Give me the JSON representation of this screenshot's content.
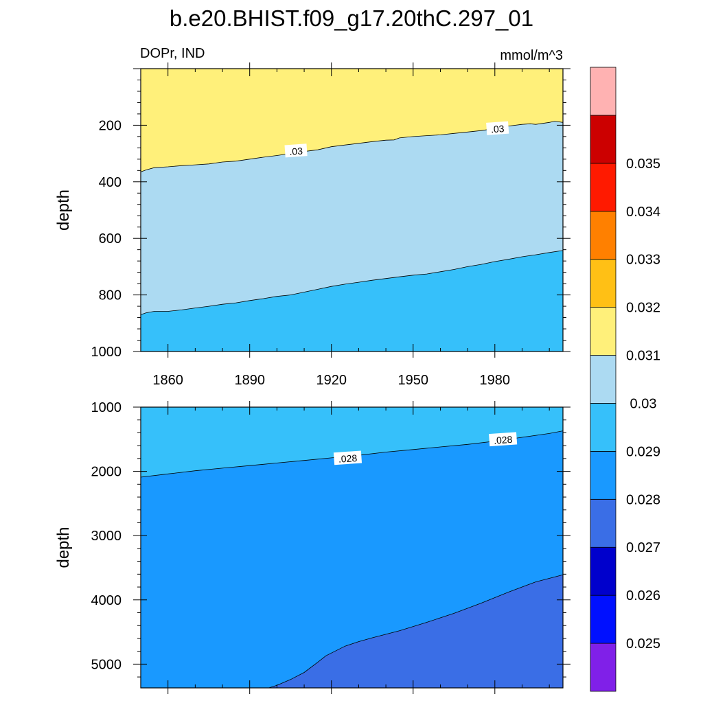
{
  "title": "b.e20.BHIST.f09_g17.20thC.297_01",
  "chart_data": {
    "type": "contour",
    "left_label": "DOPr, IND",
    "right_label": "mmol/m^3",
    "x_axis": {
      "range": [
        1850,
        2005
      ],
      "ticks": [
        1860,
        1890,
        1920,
        1950,
        1980
      ],
      "labels": [
        "1860",
        "1890",
        "1920",
        "1950",
        "1980"
      ]
    },
    "colorbar": {
      "colors": [
        "#8020e8",
        "#0010ff",
        "#0000cc",
        "#3a6ee6",
        "#1999ff",
        "#36c0fa",
        "#acdaf2",
        "#fff07a",
        "#ffc015",
        "#ff8000",
        "#ff1a00",
        "#cc0000",
        "#ffb2b2"
      ],
      "levels": [
        0.025,
        0.026,
        0.027,
        0.028,
        0.029,
        0.03,
        0.031,
        0.032,
        0.033,
        0.034,
        0.035
      ],
      "labels": [
        "0.025",
        "0.026",
        "0.027",
        "0.028",
        "0.029",
        "0.03",
        "0.031",
        "0.032",
        "0.033",
        "0.034",
        "0.035"
      ]
    },
    "panels": [
      {
        "name": "upper",
        "y_label": "depth",
        "y_range": [
          0,
          1000
        ],
        "y_ticks": [
          200,
          400,
          600,
          800,
          1000
        ],
        "y_tick_labels": [
          "200",
          "400",
          "600",
          "800",
          "1000"
        ],
        "base_color": "#fff07a",
        "bands": [
          {
            "level": 0.03,
            "color": "#acdaf2",
            "boundary": [
              [
                1850,
                365
              ],
              [
                1852,
                358
              ],
              [
                1855,
                350
              ],
              [
                1860,
                347
              ],
              [
                1865,
                343
              ],
              [
                1870,
                340
              ],
              [
                1875,
                337
              ],
              [
                1880,
                330
              ],
              [
                1885,
                327
              ],
              [
                1890,
                320
              ],
              [
                1895,
                313
              ],
              [
                1900,
                307
              ],
              [
                1905,
                300
              ],
              [
                1910,
                293
              ],
              [
                1915,
                287
              ],
              [
                1920,
                276
              ],
              [
                1925,
                270
              ],
              [
                1930,
                264
              ],
              [
                1935,
                258
              ],
              [
                1940,
                253
              ],
              [
                1943,
                252
              ],
              [
                1945,
                245
              ],
              [
                1950,
                240
              ],
              [
                1955,
                237
              ],
              [
                1960,
                234
              ],
              [
                1965,
                229
              ],
              [
                1970,
                224
              ],
              [
                1975,
                219
              ],
              [
                1980,
                212
              ],
              [
                1985,
                203
              ],
              [
                1990,
                197
              ],
              [
                1993,
                195
              ],
              [
                1995,
                197
              ],
              [
                2000,
                190
              ],
              [
                2002,
                186
              ],
              [
                2005,
                190
              ]
            ]
          },
          {
            "level": 0.028,
            "color": "#36c0fa",
            "boundary": [
              [
                1850,
                870
              ],
              [
                1852,
                863
              ],
              [
                1855,
                858
              ],
              [
                1860,
                858
              ],
              [
                1865,
                853
              ],
              [
                1870,
                846
              ],
              [
                1875,
                840
              ],
              [
                1880,
                833
              ],
              [
                1885,
                828
              ],
              [
                1890,
                820
              ],
              [
                1895,
                813
              ],
              [
                1900,
                805
              ],
              [
                1905,
                800
              ],
              [
                1910,
                790
              ],
              [
                1915,
                780
              ],
              [
                1920,
                770
              ],
              [
                1925,
                762
              ],
              [
                1930,
                755
              ],
              [
                1935,
                748
              ],
              [
                1940,
                742
              ],
              [
                1945,
                736
              ],
              [
                1950,
                730
              ],
              [
                1955,
                726
              ],
              [
                1960,
                718
              ],
              [
                1965,
                710
              ],
              [
                1970,
                700
              ],
              [
                1975,
                692
              ],
              [
                1980,
                682
              ],
              [
                1985,
                674
              ],
              [
                1990,
                665
              ],
              [
                1995,
                658
              ],
              [
                2000,
                650
              ],
              [
                2005,
                643
              ]
            ]
          }
        ],
        "contour_labels": [
          {
            "text": ".03",
            "x": 1907,
            "y": 292
          },
          {
            "text": ".03",
            "x": 1981,
            "y": 213
          }
        ]
      },
      {
        "name": "lower",
        "y_label": "depth",
        "y_range": [
          1000,
          5370
        ],
        "y_ticks": [
          1000,
          2000,
          3000,
          4000,
          5000
        ],
        "y_tick_labels": [
          "1000",
          "2000",
          "3000",
          "4000",
          "5000"
        ],
        "base_color": "#36c0fa",
        "bands": [
          {
            "level": 0.028,
            "color": "#1999ff",
            "boundary": [
              [
                1850,
                2090
              ],
              [
                1860,
                2040
              ],
              [
                1870,
                1990
              ],
              [
                1880,
                1950
              ],
              [
                1890,
                1910
              ],
              [
                1900,
                1870
              ],
              [
                1910,
                1830
              ],
              [
                1920,
                1790
              ],
              [
                1930,
                1750
              ],
              [
                1940,
                1700
              ],
              [
                1950,
                1660
              ],
              [
                1960,
                1620
              ],
              [
                1970,
                1580
              ],
              [
                1980,
                1530
              ],
              [
                1990,
                1470
              ],
              [
                2000,
                1410
              ],
              [
                2005,
                1370
              ]
            ]
          },
          {
            "level": 0.027,
            "color": "#3a6ee6",
            "boundary": [
              [
                1897,
                5370
              ],
              [
                1900,
                5330
              ],
              [
                1905,
                5240
              ],
              [
                1910,
                5130
              ],
              [
                1915,
                4970
              ],
              [
                1918,
                4870
              ],
              [
                1925,
                4720
              ],
              [
                1930,
                4650
              ],
              [
                1935,
                4590
              ],
              [
                1945,
                4480
              ],
              [
                1955,
                4350
              ],
              [
                1965,
                4210
              ],
              [
                1975,
                4050
              ],
              [
                1985,
                3880
              ],
              [
                1995,
                3720
              ],
              [
                2005,
                3610
              ]
            ]
          }
        ],
        "contour_labels": [
          {
            "text": ".028",
            "x": 1926,
            "y": 1800
          },
          {
            "text": ".028",
            "x": 1983,
            "y": 1510
          }
        ]
      }
    ]
  }
}
